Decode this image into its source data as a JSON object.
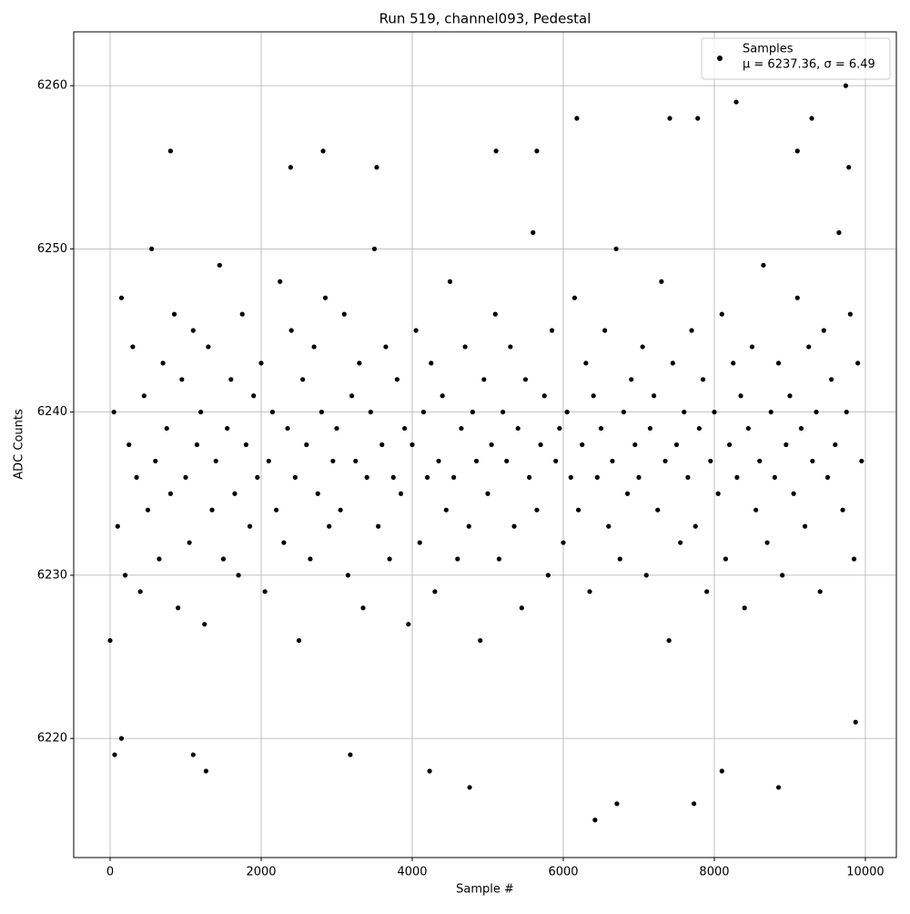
{
  "chart_data": {
    "type": "scatter",
    "title": "Run 519, channel093, Pedestal",
    "x_label": "Sample #",
    "y_label": "ADC Counts",
    "xlim": [
      -482,
      10410
    ],
    "ylim": [
      6212.7,
      6263.3
    ],
    "xticks": [
      0,
      2000,
      4000,
      6000,
      8000,
      10000
    ],
    "yticks": [
      6220,
      6230,
      6240,
      6250,
      6260
    ],
    "grid": true,
    "legend": "upper right",
    "series": [
      {
        "name": "Samples",
        "label": "μ = 6237.36, σ = 6.49",
        "color": "#000000",
        "x": [
          0,
          50,
          100,
          150,
          200,
          250,
          300,
          350,
          400,
          450,
          500,
          550,
          600,
          650,
          700,
          750,
          800,
          850,
          900,
          950,
          1000,
          1050,
          1100,
          1150,
          1200,
          1250,
          1300,
          1350,
          1400,
          1450,
          1500,
          1550,
          1600,
          1650,
          1700,
          1750,
          1800,
          1850,
          1900,
          1950,
          2000,
          2050,
          2100,
          2150,
          2200,
          2250,
          2300,
          2350,
          2400,
          2450,
          2500,
          2550,
          2600,
          2650,
          2700,
          2750,
          2800,
          2850,
          2900,
          2950,
          3000,
          3050,
          3100,
          3150,
          3200,
          3250,
          3300,
          3350,
          3400,
          3450,
          3500,
          3550,
          3600,
          3650,
          3700,
          3750,
          3800,
          3850,
          3900,
          3950,
          4000,
          4050,
          4100,
          4150,
          4200,
          4250,
          4300,
          4350,
          4400,
          4450,
          4500,
          4550,
          4600,
          4650,
          4700,
          4750,
          4800,
          4850,
          4900,
          4950,
          5000,
          5050,
          5100,
          5150,
          5200,
          5250,
          5300,
          5350,
          5400,
          5450,
          5500,
          5550,
          5600,
          5650,
          5700,
          5750,
          5800,
          5850,
          5900,
          5950,
          6000,
          6050,
          6100,
          6150,
          6200,
          6250,
          6300,
          6350,
          6400,
          6450,
          6500,
          6550,
          6600,
          6650,
          6700,
          6750,
          6800,
          6850,
          6900,
          6950,
          7000,
          7050,
          7100,
          7150,
          7200,
          7250,
          7300,
          7350,
          7400,
          7450,
          7500,
          7550,
          7600,
          7650,
          7700,
          7750,
          7800,
          7850,
          7900,
          7950,
          8000,
          8050,
          8100,
          8150,
          8200,
          8250,
          8300,
          8350,
          8400,
          8450,
          8500,
          8550,
          8600,
          8650,
          8700,
          8750,
          8800,
          8850,
          8900,
          8950,
          9000,
          9050,
          9100,
          9150,
          9200,
          9250,
          9300,
          9350,
          9400,
          9450,
          9500,
          9550,
          9600,
          9650,
          9700,
          9750,
          9800,
          9850,
          9900,
          9950,
          6420,
          6710,
          7730,
          4760,
          8850,
          1270,
          4230,
          8100,
          9740,
          8290,
          6180,
          7410,
          7780,
          9290,
          800,
          2820,
          3530,
          5110,
          5650,
          9780,
          2390,
          9100,
          60,
          150,
          1100,
          3180,
          9870
        ],
        "values": [
          6226,
          6240,
          6233,
          6247,
          6230,
          6238,
          6244,
          6236,
          6229,
          6241,
          6234,
          6250,
          6237,
          6231,
          6243,
          6239,
          6235,
          6246,
          6228,
          6242,
          6236,
          6232,
          6245,
          6238,
          6240,
          6227,
          6244,
          6234,
          6237,
          6249,
          6231,
          6239,
          6242,
          6235,
          6230,
          6246,
          6238,
          6233,
          6241,
          6236,
          6243,
          6229,
          6237,
          6240,
          6234,
          6248,
          6232,
          6239,
          6245,
          6236,
          6226,
          6242,
          6238,
          6231,
          6244,
          6235,
          6240,
          6247,
          6233,
          6237,
          6239,
          6234,
          6246,
          6230,
          6241,
          6237,
          6243,
          6228,
          6236,
          6240,
          6250,
          6233,
          6238,
          6244,
          6231,
          6236,
          6242,
          6235,
          6239,
          6227,
          6238,
          6245,
          6232,
          6240,
          6236,
          6243,
          6229,
          6237,
          6241,
          6234,
          6248,
          6236,
          6231,
          6239,
          6244,
          6233,
          6240,
          6237,
          6226,
          6242,
          6235,
          6238,
          6246,
          6231,
          6240,
          6237,
          6244,
          6233,
          6239,
          6228,
          6242,
          6236,
          6251,
          6234,
          6238,
          6241,
          6230,
          6245,
          6237,
          6239,
          6232,
          6240,
          6236,
          6247,
          6234,
          6238,
          6243,
          6229,
          6241,
          6236,
          6239,
          6245,
          6233,
          6237,
          6250,
          6231,
          6240,
          6235,
          6242,
          6238,
          6236,
          6244,
          6230,
          6239,
          6241,
          6234,
          6248,
          6237,
          6226,
          6243,
          6238,
          6232,
          6240,
          6236,
          6245,
          6233,
          6239,
          6242,
          6229,
          6237,
          6240,
          6235,
          6246,
          6231,
          6238,
          6243,
          6236,
          6241,
          6228,
          6239,
          6244,
          6234,
          6237,
          6249,
          6232,
          6240,
          6236,
          6243,
          6230,
          6238,
          6241,
          6235,
          6247,
          6239,
          6233,
          6244,
          6237,
          6240,
          6229,
          6245,
          6236,
          6242,
          6238,
          6251,
          6234,
          6240,
          6246,
          6231,
          6243,
          6237,
          6215,
          6216,
          6216,
          6217,
          6217,
          6218,
          6218,
          6218,
          6260,
          6259,
          6258,
          6258,
          6258,
          6258,
          6256,
          6256,
          6255,
          6256,
          6256,
          6255,
          6255,
          6256,
          6219,
          6220,
          6219,
          6219,
          6221
        ]
      }
    ]
  }
}
